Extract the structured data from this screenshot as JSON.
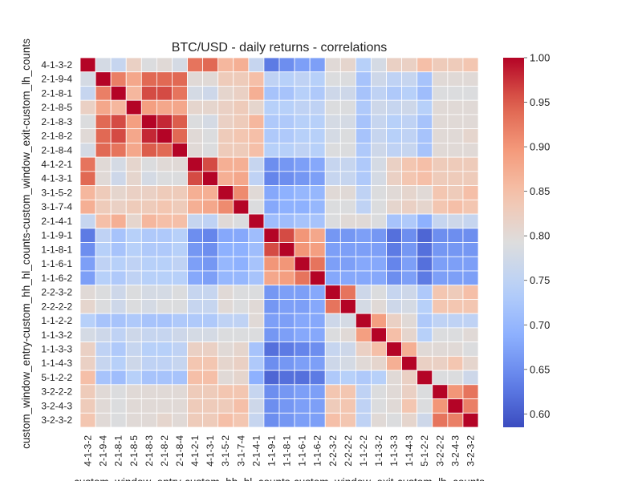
{
  "chart_data": {
    "type": "heatmap",
    "title": "BTC/USD - daily returns - correlations",
    "xlabel": "custom_window_entry-custom_hh_hl_counts-custom_window_exit-custom_lh_counts",
    "ylabel": "custom_window_entry-custom_hh_hl_counts-custom_window_exit-custom_lh_counts",
    "labels": [
      "4-1-3-2",
      "2-1-9-4",
      "2-1-8-1",
      "2-1-8-5",
      "2-1-8-3",
      "2-1-8-2",
      "2-1-8-4",
      "4-1-2-1",
      "4-1-3-1",
      "3-1-5-2",
      "3-1-7-4",
      "2-1-4-1",
      "1-1-9-1",
      "1-1-8-1",
      "1-1-6-1",
      "1-1-6-2",
      "2-2-3-2",
      "2-2-2-2",
      "1-1-2-2",
      "1-1-3-2",
      "1-1-3-3",
      "1-1-4-3",
      "5-1-2-2",
      "3-2-2-2",
      "3-2-4-3",
      "3-2-3-2"
    ],
    "vmin": 0.585,
    "vmax": 1.0,
    "colorbar_ticks": [
      "0.60",
      "0.65",
      "0.70",
      "0.75",
      "0.80",
      "0.85",
      "0.90",
      "0.95",
      "1.00"
    ],
    "colormap": "coolwarm",
    "values": [
      [
        1.0,
        0.78,
        0.76,
        0.82,
        0.79,
        0.8,
        0.78,
        0.93,
        0.94,
        0.86,
        0.87,
        0.76,
        0.63,
        0.65,
        0.67,
        0.67,
        0.8,
        0.81,
        0.74,
        0.78,
        0.82,
        0.82,
        0.85,
        0.83,
        0.83,
        0.84
      ],
      [
        0.78,
        1.0,
        0.92,
        0.88,
        0.94,
        0.94,
        0.94,
        0.8,
        0.8,
        0.83,
        0.83,
        0.85,
        0.75,
        0.74,
        0.75,
        0.74,
        0.79,
        0.79,
        0.72,
        0.77,
        0.75,
        0.76,
        0.72,
        0.8,
        0.8,
        0.8
      ],
      [
        0.76,
        0.92,
        1.0,
        0.86,
        0.96,
        0.96,
        0.93,
        0.78,
        0.77,
        0.81,
        0.82,
        0.87,
        0.72,
        0.72,
        0.74,
        0.73,
        0.77,
        0.77,
        0.72,
        0.75,
        0.73,
        0.74,
        0.71,
        0.79,
        0.79,
        0.79
      ],
      [
        0.82,
        0.88,
        0.86,
        1.0,
        0.89,
        0.88,
        0.88,
        0.81,
        0.81,
        0.82,
        0.83,
        0.81,
        0.74,
        0.74,
        0.75,
        0.75,
        0.79,
        0.79,
        0.73,
        0.77,
        0.76,
        0.77,
        0.74,
        0.8,
        0.8,
        0.8
      ],
      [
        0.79,
        0.94,
        0.96,
        0.89,
        1.0,
        0.98,
        0.95,
        0.79,
        0.78,
        0.82,
        0.83,
        0.86,
        0.73,
        0.73,
        0.74,
        0.74,
        0.78,
        0.78,
        0.72,
        0.76,
        0.74,
        0.75,
        0.72,
        0.8,
        0.8,
        0.8
      ],
      [
        0.8,
        0.94,
        0.96,
        0.88,
        0.98,
        1.0,
        0.94,
        0.8,
        0.79,
        0.83,
        0.84,
        0.85,
        0.73,
        0.73,
        0.74,
        0.74,
        0.78,
        0.79,
        0.72,
        0.76,
        0.74,
        0.75,
        0.72,
        0.8,
        0.8,
        0.81
      ],
      [
        0.78,
        0.94,
        0.93,
        0.88,
        0.95,
        0.94,
        1.0,
        0.8,
        0.79,
        0.83,
        0.83,
        0.85,
        0.74,
        0.74,
        0.75,
        0.74,
        0.79,
        0.79,
        0.73,
        0.77,
        0.75,
        0.76,
        0.72,
        0.8,
        0.8,
        0.8
      ],
      [
        0.93,
        0.8,
        0.78,
        0.81,
        0.79,
        0.8,
        0.8,
        1.0,
        0.96,
        0.87,
        0.87,
        0.76,
        0.65,
        0.66,
        0.67,
        0.68,
        0.76,
        0.76,
        0.73,
        0.78,
        0.82,
        0.84,
        0.85,
        0.83,
        0.83,
        0.83
      ],
      [
        0.94,
        0.8,
        0.77,
        0.81,
        0.78,
        0.79,
        0.79,
        0.96,
        1.0,
        0.87,
        0.88,
        0.75,
        0.64,
        0.65,
        0.66,
        0.67,
        0.76,
        0.76,
        0.73,
        0.78,
        0.82,
        0.84,
        0.85,
        0.83,
        0.83,
        0.83
      ],
      [
        0.86,
        0.83,
        0.81,
        0.82,
        0.82,
        0.83,
        0.83,
        0.87,
        0.87,
        1.0,
        0.91,
        0.8,
        0.68,
        0.69,
        0.7,
        0.7,
        0.8,
        0.8,
        0.75,
        0.79,
        0.8,
        0.81,
        0.8,
        0.84,
        0.83,
        0.85
      ],
      [
        0.87,
        0.83,
        0.82,
        0.83,
        0.83,
        0.84,
        0.83,
        0.87,
        0.88,
        0.91,
        1.0,
        0.79,
        0.68,
        0.69,
        0.69,
        0.7,
        0.79,
        0.79,
        0.75,
        0.79,
        0.81,
        0.82,
        0.81,
        0.84,
        0.85,
        0.84
      ],
      [
        0.76,
        0.85,
        0.87,
        0.81,
        0.86,
        0.85,
        0.85,
        0.76,
        0.75,
        0.8,
        0.79,
        1.0,
        0.71,
        0.71,
        0.72,
        0.72,
        0.79,
        0.8,
        0.8,
        0.79,
        0.72,
        0.73,
        0.69,
        0.76,
        0.77,
        0.76
      ],
      [
        0.63,
        0.75,
        0.72,
        0.74,
        0.73,
        0.73,
        0.74,
        0.65,
        0.64,
        0.68,
        0.68,
        0.71,
        1.0,
        0.96,
        0.9,
        0.88,
        0.66,
        0.66,
        0.67,
        0.66,
        0.62,
        0.65,
        0.61,
        0.65,
        0.65,
        0.65
      ],
      [
        0.65,
        0.74,
        0.72,
        0.74,
        0.73,
        0.73,
        0.74,
        0.66,
        0.65,
        0.69,
        0.69,
        0.71,
        0.96,
        1.0,
        0.9,
        0.89,
        0.67,
        0.67,
        0.67,
        0.67,
        0.63,
        0.66,
        0.62,
        0.66,
        0.66,
        0.66
      ],
      [
        0.67,
        0.75,
        0.74,
        0.75,
        0.74,
        0.74,
        0.75,
        0.67,
        0.66,
        0.7,
        0.69,
        0.72,
        0.9,
        0.9,
        1.0,
        0.93,
        0.67,
        0.67,
        0.68,
        0.68,
        0.64,
        0.67,
        0.62,
        0.67,
        0.67,
        0.67
      ],
      [
        0.67,
        0.74,
        0.73,
        0.75,
        0.74,
        0.74,
        0.74,
        0.68,
        0.67,
        0.7,
        0.7,
        0.72,
        0.88,
        0.89,
        0.93,
        1.0,
        0.68,
        0.68,
        0.68,
        0.68,
        0.65,
        0.67,
        0.63,
        0.67,
        0.67,
        0.67
      ],
      [
        0.8,
        0.79,
        0.77,
        0.79,
        0.78,
        0.78,
        0.79,
        0.76,
        0.76,
        0.8,
        0.79,
        0.79,
        0.66,
        0.67,
        0.67,
        0.68,
        1.0,
        0.93,
        0.77,
        0.79,
        0.76,
        0.77,
        0.73,
        0.84,
        0.83,
        0.85
      ],
      [
        0.81,
        0.79,
        0.77,
        0.79,
        0.78,
        0.79,
        0.79,
        0.76,
        0.76,
        0.8,
        0.79,
        0.8,
        0.66,
        0.67,
        0.67,
        0.68,
        0.93,
        1.0,
        0.78,
        0.8,
        0.77,
        0.78,
        0.74,
        0.84,
        0.84,
        0.84
      ],
      [
        0.74,
        0.72,
        0.72,
        0.73,
        0.72,
        0.72,
        0.73,
        0.73,
        0.73,
        0.75,
        0.75,
        0.8,
        0.67,
        0.67,
        0.68,
        0.68,
        0.77,
        0.78,
        1.0,
        0.89,
        0.82,
        0.8,
        0.73,
        0.75,
        0.75,
        0.75
      ],
      [
        0.78,
        0.77,
        0.75,
        0.77,
        0.76,
        0.76,
        0.77,
        0.78,
        0.78,
        0.79,
        0.79,
        0.79,
        0.66,
        0.67,
        0.68,
        0.68,
        0.79,
        0.8,
        0.89,
        1.0,
        0.85,
        0.81,
        0.74,
        0.79,
        0.79,
        0.8
      ],
      [
        0.82,
        0.75,
        0.73,
        0.76,
        0.74,
        0.74,
        0.75,
        0.82,
        0.82,
        0.8,
        0.81,
        0.72,
        0.62,
        0.63,
        0.64,
        0.65,
        0.76,
        0.77,
        0.82,
        0.85,
        1.0,
        0.87,
        0.8,
        0.8,
        0.8,
        0.79
      ],
      [
        0.82,
        0.76,
        0.74,
        0.77,
        0.75,
        0.75,
        0.76,
        0.84,
        0.84,
        0.81,
        0.82,
        0.73,
        0.65,
        0.66,
        0.67,
        0.67,
        0.77,
        0.78,
        0.8,
        0.81,
        0.87,
        1.0,
        0.82,
        0.82,
        0.84,
        0.81
      ],
      [
        0.85,
        0.72,
        0.71,
        0.74,
        0.72,
        0.72,
        0.72,
        0.85,
        0.85,
        0.8,
        0.81,
        0.69,
        0.61,
        0.62,
        0.62,
        0.63,
        0.73,
        0.74,
        0.73,
        0.74,
        0.8,
        0.82,
        1.0,
        0.79,
        0.79,
        0.77
      ],
      [
        0.83,
        0.8,
        0.79,
        0.8,
        0.8,
        0.8,
        0.8,
        0.83,
        0.83,
        0.84,
        0.84,
        0.76,
        0.65,
        0.66,
        0.67,
        0.67,
        0.84,
        0.84,
        0.75,
        0.79,
        0.8,
        0.82,
        0.79,
        1.0,
        0.9,
        0.93
      ],
      [
        0.83,
        0.8,
        0.79,
        0.8,
        0.8,
        0.8,
        0.8,
        0.83,
        0.83,
        0.83,
        0.85,
        0.77,
        0.65,
        0.66,
        0.67,
        0.67,
        0.83,
        0.84,
        0.75,
        0.79,
        0.8,
        0.84,
        0.79,
        0.9,
        1.0,
        0.92
      ],
      [
        0.84,
        0.8,
        0.79,
        0.8,
        0.8,
        0.81,
        0.8,
        0.83,
        0.83,
        0.85,
        0.84,
        0.76,
        0.65,
        0.66,
        0.67,
        0.67,
        0.85,
        0.84,
        0.75,
        0.8,
        0.79,
        0.81,
        0.77,
        0.93,
        0.92,
        1.0
      ]
    ]
  }
}
